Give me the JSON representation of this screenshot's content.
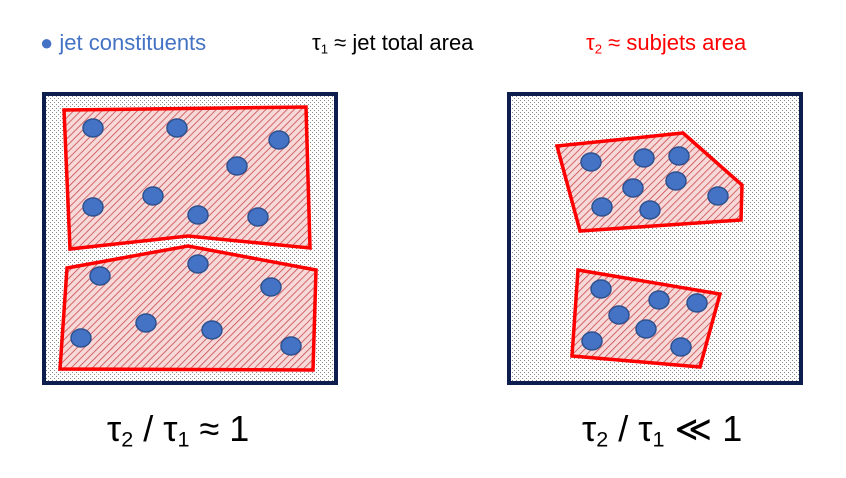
{
  "legend": {
    "constituents_marker": "●",
    "constituents_label": "jet constituents",
    "tau1_symbol": "τ",
    "tau1_sub": "1",
    "tau1_text": " ≈ jet total area",
    "tau2_symbol": "τ",
    "tau2_sub": "2",
    "tau2_text": " ≈ subjets area"
  },
  "captions": {
    "left": {
      "t2": "τ",
      "t2sub": "2",
      "mid": " / τ",
      "t1sub": "1",
      "rel": " ≈ 1"
    },
    "right": {
      "t2": "τ",
      "t2sub": "2",
      "mid": " / τ",
      "t1sub": "1",
      "rel": " ≪ 1"
    }
  },
  "colors": {
    "dot_fill": "#4472C4",
    "dot_stroke": "#2F528F",
    "frame": "#0D1E4E",
    "subjet_outline": "#FF0000",
    "subjet_hatch": "#C00000"
  }
}
